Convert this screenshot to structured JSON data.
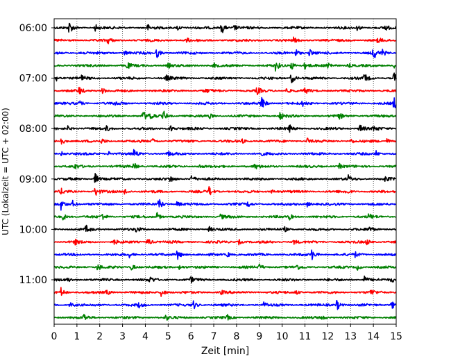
{
  "chart_data": {
    "type": "line",
    "title": "",
    "xlabel": "Zeit  [min]",
    "ylabel": "UTC (Lokalzeit = UTC + 02:00)",
    "xlim": [
      0,
      15
    ],
    "x_ticks": [
      "0",
      "1",
      "2",
      "3",
      "4",
      "5",
      "6",
      "7",
      "8",
      "9",
      "10",
      "11",
      "12",
      "13",
      "14",
      "15"
    ],
    "y_ticks": [
      "06:00",
      "07:00",
      "08:00",
      "09:00",
      "10:00",
      "11:00"
    ],
    "grid": "vertical dotted at each minute",
    "trace_interval_min": 15,
    "first_trace": "06:00",
    "trace_count": 24,
    "colors": [
      "#000000",
      "#ff0000",
      "#0000ff",
      "#008000"
    ],
    "events": [
      [
        [
          0.65,
          1.0
        ],
        [
          1.8,
          0.55
        ],
        [
          4.1,
          0.5
        ],
        [
          5.4,
          0.5
        ],
        [
          7.35,
          1.0
        ],
        [
          7.9,
          0.45
        ],
        [
          13.3,
          0.45
        ],
        [
          14.5,
          0.4
        ]
      ],
      [
        [
          2.35,
          0.5
        ],
        [
          5.8,
          0.35
        ],
        [
          10.5,
          0.35
        ],
        [
          14.2,
          0.35
        ]
      ],
      [
        [
          1.1,
          0.45
        ],
        [
          3.1,
          0.4
        ],
        [
          4.5,
          0.8
        ],
        [
          10.6,
          0.6
        ],
        [
          11.2,
          0.6
        ],
        [
          14.0,
          1.0
        ],
        [
          14.4,
          0.45
        ]
      ],
      [
        [
          3.2,
          0.5
        ],
        [
          5.0,
          0.4
        ],
        [
          7.0,
          0.4
        ],
        [
          9.7,
          0.8
        ],
        [
          10.4,
          0.7
        ],
        [
          11.0,
          0.6
        ],
        [
          12.0,
          0.6
        ],
        [
          12.9,
          0.4
        ],
        [
          14.9,
          0.4
        ]
      ],
      [
        [
          0.1,
          0.5
        ],
        [
          1.2,
          0.4
        ],
        [
          4.9,
          0.5
        ],
        [
          10.4,
          0.9
        ],
        [
          13.6,
          0.7
        ],
        [
          14.9,
          0.9
        ]
      ],
      [
        [
          1.1,
          0.6
        ],
        [
          2.1,
          0.5
        ],
        [
          6.6,
          0.4
        ],
        [
          8.9,
          0.55
        ],
        [
          10.2,
          0.45
        ],
        [
          11.0,
          0.4
        ]
      ],
      [
        [
          1.1,
          0.4
        ],
        [
          2.7,
          0.4
        ],
        [
          9.1,
          1.0
        ],
        [
          10.9,
          0.4
        ],
        [
          14.9,
          0.9
        ]
      ],
      [
        [
          3.9,
          0.8
        ],
        [
          4.2,
          0.6
        ],
        [
          4.8,
          0.8
        ],
        [
          6.8,
          0.4
        ],
        [
          9.9,
          0.6
        ],
        [
          12.5,
          0.4
        ]
      ],
      [
        [
          0.6,
          0.35
        ],
        [
          2.3,
          0.4
        ],
        [
          5.1,
          0.55
        ],
        [
          10.3,
          0.6
        ],
        [
          13.4,
          0.9
        ],
        [
          14.0,
          0.4
        ]
      ],
      [
        [
          0.3,
          0.6
        ],
        [
          2.1,
          0.4
        ],
        [
          4.3,
          0.45
        ],
        [
          8.2,
          0.4
        ],
        [
          11.1,
          0.45
        ],
        [
          13.0,
          0.4
        ],
        [
          14.6,
          0.4
        ]
      ],
      [
        [
          0.3,
          0.4
        ],
        [
          2.4,
          0.4
        ],
        [
          3.5,
          0.7
        ],
        [
          5.0,
          0.4
        ],
        [
          9.0,
          0.4
        ],
        [
          14.1,
          0.5
        ]
      ],
      [
        [
          0.9,
          0.4
        ],
        [
          3.5,
          0.5
        ],
        [
          6.3,
          0.4
        ],
        [
          8.8,
          0.4
        ],
        [
          12.5,
          0.4
        ]
      ],
      [
        [
          1.8,
          0.9
        ],
        [
          5.1,
          0.55
        ],
        [
          6.0,
          0.7
        ],
        [
          12.9,
          0.5
        ],
        [
          14.5,
          0.4
        ]
      ],
      [
        [
          0.3,
          0.4
        ],
        [
          1.8,
          0.8
        ],
        [
          3.1,
          0.5
        ],
        [
          6.8,
          0.75
        ],
        [
          9.5,
          0.4
        ],
        [
          12.8,
          0.4
        ]
      ],
      [
        [
          0.3,
          0.8
        ],
        [
          0.8,
          0.6
        ],
        [
          4.6,
          0.95
        ],
        [
          5.4,
          0.45
        ],
        [
          8.5,
          0.4
        ],
        [
          11.1,
          0.4
        ]
      ],
      [
        [
          0.4,
          0.55
        ],
        [
          2.1,
          0.6
        ],
        [
          4.5,
          0.7
        ],
        [
          7.3,
          0.4
        ],
        [
          10.3,
          0.5
        ],
        [
          13.8,
          0.45
        ]
      ],
      [
        [
          1.4,
          0.55
        ],
        [
          3.6,
          0.4
        ],
        [
          6.8,
          0.4
        ],
        [
          10.1,
          0.4
        ],
        [
          13.8,
          0.5
        ]
      ],
      [
        [
          0.9,
          0.4
        ],
        [
          2.6,
          0.5
        ],
        [
          4.1,
          0.7
        ],
        [
          8.1,
          0.4
        ],
        [
          10.5,
          0.45
        ],
        [
          13.7,
          0.4
        ]
      ],
      [
        [
          3.3,
          0.4
        ],
        [
          5.4,
          0.9
        ],
        [
          7.6,
          0.4
        ],
        [
          11.3,
          0.85
        ],
        [
          13.2,
          0.4
        ]
      ],
      [
        [
          1.9,
          0.6
        ],
        [
          3.4,
          0.55
        ],
        [
          5.5,
          0.4
        ],
        [
          9.0,
          0.45
        ],
        [
          10.6,
          0.5
        ],
        [
          13.3,
          0.4
        ]
      ],
      [
        [
          0.6,
          0.35
        ],
        [
          4.2,
          0.5
        ],
        [
          6.0,
          0.4
        ],
        [
          13.6,
          0.6
        ],
        [
          14.8,
          0.4
        ]
      ],
      [
        [
          0.3,
          0.7
        ],
        [
          2.3,
          0.4
        ],
        [
          4.7,
          0.8
        ],
        [
          7.3,
          0.4
        ],
        [
          10.6,
          0.4
        ],
        [
          13.9,
          0.45
        ]
      ],
      [
        [
          0.7,
          0.4
        ],
        [
          3.7,
          0.4
        ],
        [
          6.1,
          0.7
        ],
        [
          9.2,
          0.4
        ],
        [
          12.4,
          0.85
        ],
        [
          14.8,
          0.7
        ]
      ],
      [
        [
          1.3,
          0.55
        ],
        [
          4.9,
          0.4
        ],
        [
          7.6,
          0.35
        ],
        [
          11.7,
          0.4
        ]
      ]
    ]
  }
}
